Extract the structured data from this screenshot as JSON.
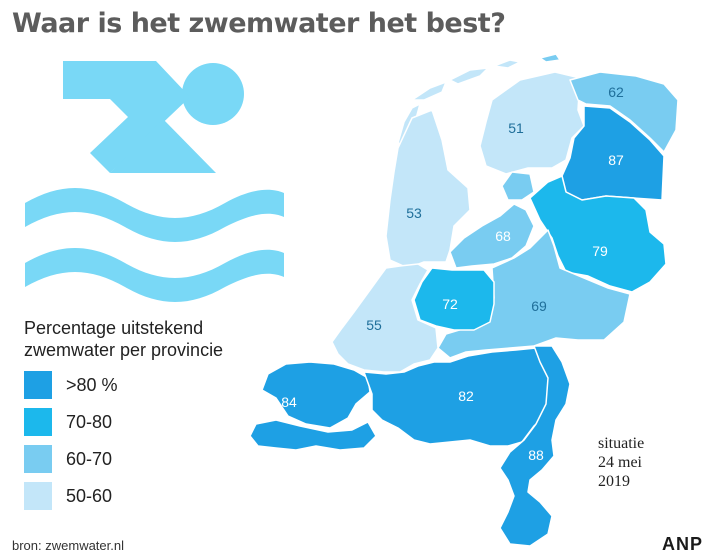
{
  "title": "Waar is het zwemwater het best?",
  "legend": {
    "title_line1": "Percentage uitstekend",
    "title_line2": "zwemwater per provincie",
    "items": [
      {
        "label": ">80 %",
        "color": "#1ea0e4"
      },
      {
        "label": "70-80",
        "color": "#1cb8ec"
      },
      {
        "label": "60-70",
        "color": "#79ccf1"
      },
      {
        "label": "50-60",
        "color": "#c3e6f9"
      }
    ]
  },
  "provinces": [
    {
      "name": "Friesland",
      "value": "51",
      "color": "#c3e6f9"
    },
    {
      "name": "Groningen",
      "value": "62",
      "color": "#79ccf1"
    },
    {
      "name": "Drenthe",
      "value": "87",
      "color": "#1ea0e4"
    },
    {
      "name": "Noord-Holland",
      "value": "53",
      "color": "#c3e6f9"
    },
    {
      "name": "Flevoland",
      "value": "68",
      "color": "#79ccf1"
    },
    {
      "name": "Overijssel",
      "value": "79",
      "color": "#1cb8ec"
    },
    {
      "name": "Utrecht",
      "value": "72",
      "color": "#1cb8ec"
    },
    {
      "name": "Gelderland",
      "value": "69",
      "color": "#79ccf1"
    },
    {
      "name": "Zuid-Holland",
      "value": "55",
      "color": "#c3e6f9"
    },
    {
      "name": "Zeeland",
      "value": "84",
      "color": "#1ea0e4"
    },
    {
      "name": "Noord-Brabant",
      "value": "82",
      "color": "#1ea0e4"
    },
    {
      "name": "Limburg",
      "value": "88",
      "color": "#1ea0e4"
    }
  ],
  "situatie": {
    "line1": "situatie",
    "line2": "24 mei",
    "line3": "2019"
  },
  "source": "bron: zwemwater.nl",
  "logo": "ANP"
}
